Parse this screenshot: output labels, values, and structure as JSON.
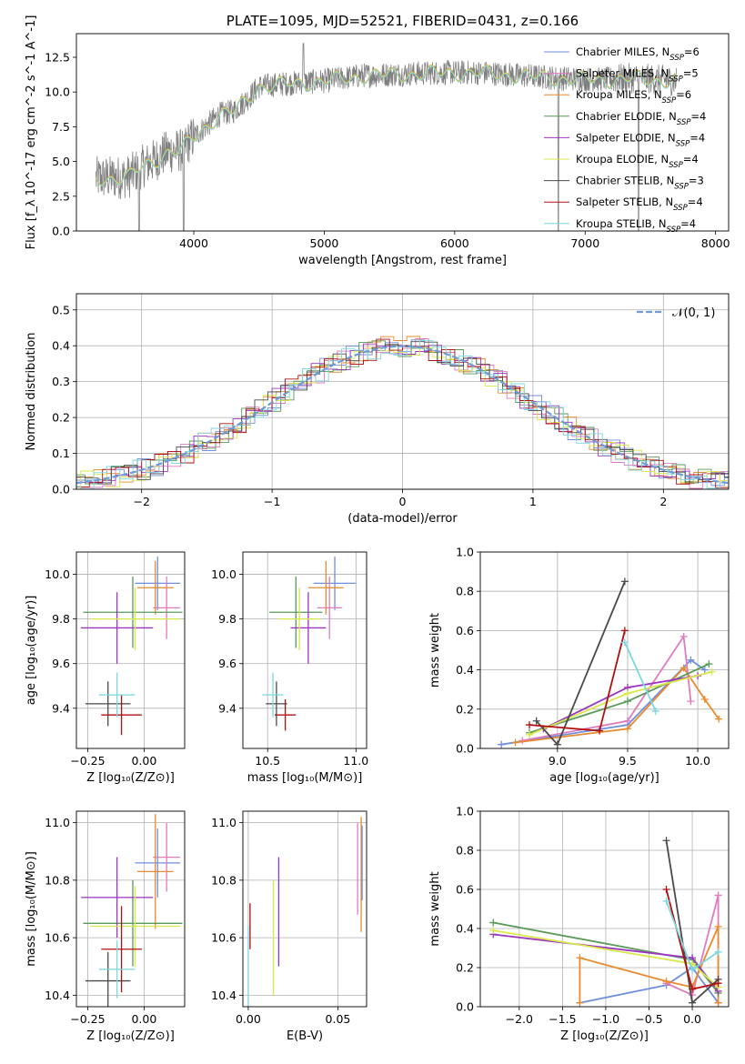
{
  "colors": {
    "chabrier_miles": "#6f8fdc",
    "salpeter_miles": "#e07bbf",
    "kroupa_miles": "#e88a2e",
    "chabrier_elodie": "#5a9a5a",
    "salpeter_elodie": "#9b35c0",
    "kroupa_elodie": "#d8e84a",
    "chabrier_stelib": "#4a4a4a",
    "salpeter_stelib": "#b01010",
    "kroupa_stelib": "#7ad8e0",
    "data": "#808080",
    "gaussian": "#6f9bd6",
    "grid": "#b0b0b0"
  },
  "chart_data": [
    {
      "id": "spectrum",
      "type": "line",
      "title": "PLATE=1095, MJD=52521, FIBERID=0431, z=0.166",
      "xlabel": "wavelength [Angstrom, rest frame]",
      "ylabel": "Flux [f_λ 10^-17 erg cm^-2 s^-1 A^-1]",
      "xlim": [
        3100,
        8100
      ],
      "ylim": [
        0,
        14.2
      ],
      "xticks": [
        "4000",
        "5000",
        "6000",
        "7000",
        "8000"
      ],
      "yticks": [
        "0.0",
        "2.5",
        "5.0",
        "7.5",
        "10.0",
        "12.5"
      ],
      "grid": false,
      "legend_position": "right",
      "legend": [
        "Chabrier MILES, N_SSP=6",
        "Salpeter MILES, N_SSP=5",
        "Kroupa MILES, N_SSP=6",
        "Chabrier ELODIE, N_SSP=4",
        "Salpeter ELODIE, N_SSP=4",
        "Kroupa ELODIE, N_SSP=4",
        "Chabrier STELIB, N_SSP=3",
        "Salpeter STELIB, N_SSP=4",
        "Kroupa STELIB, N_SSP=4"
      ],
      "continuum": {
        "x": [
          3250,
          3500,
          3600,
          3700,
          3800,
          3900,
          4000,
          4100,
          4200,
          4300,
          4400,
          4500,
          4700,
          5000,
          5300,
          5600,
          5900,
          6200,
          6500,
          6800,
          7100,
          7400,
          7700
        ],
        "y": [
          3.8,
          3.9,
          4.6,
          5.1,
          5.7,
          5.8,
          6.8,
          7.6,
          8.4,
          8.6,
          9.4,
          10.4,
          10.6,
          10.8,
          11.2,
          11.3,
          11.4,
          11.4,
          11.2,
          11.0,
          10.9,
          11.0,
          10.8
        ]
      }
    },
    {
      "id": "residuals",
      "type": "bar",
      "xlabel": "(data-model)/error",
      "ylabel": "Normed distribution",
      "xlim": [
        -2.5,
        2.5
      ],
      "ylim": [
        0,
        0.545
      ],
      "xticks": [
        "−2",
        "−1",
        "0",
        "1",
        "2"
      ],
      "yticks": [
        "0.0",
        "0.1",
        "0.2",
        "0.3",
        "0.4",
        "0.5"
      ],
      "grid": true,
      "legend_position": "top-right",
      "gaussian_label": "𝒩(0, 1)"
    },
    {
      "id": "age_vs_Z",
      "type": "scatter",
      "xlabel": "Z [log10(Z/Z⊙)]",
      "ylabel": "age  [log10(age/yr)]",
      "xlim": [
        -0.3,
        0.18
      ],
      "ylim": [
        9.22,
        10.1
      ],
      "xticks": [
        "−0.25",
        "0.00"
      ],
      "yticks": [
        "9.4",
        "9.6",
        "9.8",
        "10.0"
      ],
      "grid": true,
      "points": [
        {
          "x": 0.06,
          "y": 9.96,
          "dx": 0.1,
          "dy": 0.12,
          "c": "chabrier_miles"
        },
        {
          "x": 0.1,
          "y": 9.85,
          "dx": 0.06,
          "dy": 0.14,
          "c": "salpeter_miles"
        },
        {
          "x": 0.05,
          "y": 9.94,
          "dx": 0.08,
          "dy": 0.12,
          "c": "kroupa_miles"
        },
        {
          "x": -0.05,
          "y": 9.83,
          "dx": 0.22,
          "dy": 0.16,
          "c": "chabrier_elodie"
        },
        {
          "x": -0.12,
          "y": 9.76,
          "dx": 0.16,
          "dy": 0.16,
          "c": "salpeter_elodie"
        },
        {
          "x": -0.04,
          "y": 9.8,
          "dx": 0.2,
          "dy": 0.14,
          "c": "kroupa_elodie"
        },
        {
          "x": -0.16,
          "y": 9.42,
          "dx": 0.1,
          "dy": 0.1,
          "c": "chabrier_stelib"
        },
        {
          "x": -0.1,
          "y": 9.37,
          "dx": 0.09,
          "dy": 0.09,
          "c": "salpeter_stelib"
        },
        {
          "x": -0.12,
          "y": 9.46,
          "dx": 0.08,
          "dy": 0.1,
          "c": "kroupa_stelib"
        }
      ]
    },
    {
      "id": "age_vs_mass",
      "type": "scatter",
      "xlabel": "mass [log10(M/M⊙)]",
      "ylabel": "",
      "xlim": [
        10.36,
        11.06
      ],
      "ylim": [
        9.22,
        10.1
      ],
      "xticks": [
        "10.5",
        "11.0"
      ],
      "yticks": [
        "9.4",
        "9.6",
        "9.8",
        "10.0"
      ],
      "grid": true,
      "points": [
        {
          "x": 10.88,
          "y": 9.96,
          "dx": 0.12,
          "dy": 0.12,
          "c": "chabrier_miles"
        },
        {
          "x": 10.85,
          "y": 9.85,
          "dx": 0.07,
          "dy": 0.14,
          "c": "salpeter_miles"
        },
        {
          "x": 10.83,
          "y": 9.94,
          "dx": 0.1,
          "dy": 0.12,
          "c": "kroupa_miles"
        },
        {
          "x": 10.66,
          "y": 9.83,
          "dx": 0.15,
          "dy": 0.16,
          "c": "chabrier_elodie"
        },
        {
          "x": 10.73,
          "y": 9.76,
          "dx": 0.1,
          "dy": 0.16,
          "c": "salpeter_elodie"
        },
        {
          "x": 10.68,
          "y": 9.8,
          "dx": 0.12,
          "dy": 0.14,
          "c": "kroupa_elodie"
        },
        {
          "x": 10.55,
          "y": 9.42,
          "dx": 0.06,
          "dy": 0.1,
          "c": "chabrier_stelib"
        },
        {
          "x": 10.6,
          "y": 9.37,
          "dx": 0.06,
          "dy": 0.07,
          "c": "salpeter_stelib"
        },
        {
          "x": 10.53,
          "y": 9.46,
          "dx": 0.06,
          "dy": 0.1,
          "c": "kroupa_stelib"
        }
      ]
    },
    {
      "id": "weight_vs_age",
      "type": "line",
      "xlabel": "age  [log10(age/yr)]",
      "ylabel": "mass weight",
      "xlim": [
        8.45,
        10.22
      ],
      "ylim": [
        0,
        1.0
      ],
      "xticks": [
        "9.0",
        "9.5",
        "10.0"
      ],
      "yticks": [
        "0.0",
        "0.2",
        "0.4",
        "0.6",
        "0.8",
        "1.0"
      ],
      "grid": true,
      "series": [
        {
          "c": "chabrier_miles",
          "x": [
            8.6,
            9.5,
            9.95,
            10.05
          ],
          "y": [
            0.02,
            0.12,
            0.45,
            0.4
          ]
        },
        {
          "c": "salpeter_miles",
          "x": [
            8.75,
            9.5,
            9.9,
            9.95
          ],
          "y": [
            0.04,
            0.14,
            0.57,
            0.24
          ]
        },
        {
          "c": "kroupa_miles",
          "x": [
            8.7,
            9.5,
            9.9,
            10.05,
            10.15
          ],
          "y": [
            0.03,
            0.1,
            0.41,
            0.25,
            0.15
          ]
        },
        {
          "c": "chabrier_elodie",
          "x": [
            8.8,
            9.5,
            10.08
          ],
          "y": [
            0.08,
            0.24,
            0.43
          ]
        },
        {
          "c": "salpeter_elodie",
          "x": [
            8.9,
            9.5,
            10.0
          ],
          "y": [
            0.1,
            0.31,
            0.37
          ]
        },
        {
          "c": "kroupa_elodie",
          "x": [
            8.8,
            9.5,
            10.1
          ],
          "y": [
            0.07,
            0.28,
            0.39
          ]
        },
        {
          "c": "chabrier_stelib",
          "x": [
            8.85,
            9.0,
            9.48
          ],
          "y": [
            0.14,
            0.02,
            0.85
          ]
        },
        {
          "c": "salpeter_stelib",
          "x": [
            8.8,
            9.3,
            9.48
          ],
          "y": [
            0.12,
            0.09,
            0.6
          ]
        },
        {
          "c": "kroupa_stelib",
          "x": [
            9.48,
            9.7
          ],
          "y": [
            0.54,
            0.19
          ]
        }
      ]
    },
    {
      "id": "mass_vs_Z",
      "type": "scatter",
      "xlabel": "Z [log10(Z/Z⊙)]",
      "ylabel": "mass [log10(M/M⊙)]",
      "xlim": [
        -0.3,
        0.18
      ],
      "ylim": [
        10.36,
        11.04
      ],
      "xticks": [
        "−0.25",
        "0.00"
      ],
      "yticks": [
        "10.4",
        "10.6",
        "10.8",
        "11.0"
      ],
      "grid": true,
      "points": [
        {
          "x": 0.06,
          "y": 10.86,
          "dx": 0.1,
          "dy": 0.12,
          "c": "chabrier_miles"
        },
        {
          "x": 0.1,
          "y": 10.88,
          "dx": 0.06,
          "dy": 0.12,
          "c": "salpeter_miles"
        },
        {
          "x": 0.05,
          "y": 10.83,
          "dx": 0.08,
          "dy": 0.2,
          "c": "kroupa_miles"
        },
        {
          "x": -0.05,
          "y": 10.65,
          "dx": 0.22,
          "dy": 0.15,
          "c": "chabrier_elodie"
        },
        {
          "x": -0.12,
          "y": 10.74,
          "dx": 0.16,
          "dy": 0.14,
          "c": "salpeter_elodie"
        },
        {
          "x": -0.04,
          "y": 10.64,
          "dx": 0.2,
          "dy": 0.14,
          "c": "kroupa_elodie"
        },
        {
          "x": -0.16,
          "y": 10.45,
          "dx": 0.1,
          "dy": 0.1,
          "c": "chabrier_stelib"
        },
        {
          "x": -0.1,
          "y": 10.56,
          "dx": 0.09,
          "dy": 0.15,
          "c": "salpeter_stelib"
        },
        {
          "x": -0.12,
          "y": 10.49,
          "dx": 0.08,
          "dy": 0.1,
          "c": "kroupa_stelib"
        }
      ]
    },
    {
      "id": "mass_vs_ebv",
      "type": "scatter",
      "xlabel": "E(B-V)",
      "ylabel": "",
      "xlim": [
        -0.003,
        0.066
      ],
      "ylim": [
        10.36,
        11.04
      ],
      "xticks": [
        "0.00",
        "0.05"
      ],
      "yticks": [
        "10.4",
        "10.6",
        "10.8",
        "11.0"
      ],
      "grid": true,
      "points": [
        {
          "x": 0.0,
          "y": 10.5,
          "dx": 0,
          "dy": 0.14,
          "c": "kroupa_stelib"
        },
        {
          "x": 0.001,
          "y": 10.64,
          "dx": 0,
          "dy": 0.08,
          "c": "salpeter_stelib"
        },
        {
          "x": 0.014,
          "y": 10.6,
          "dx": 0,
          "dy": 0.2,
          "c": "kroupa_elodie"
        },
        {
          "x": 0.017,
          "y": 10.69,
          "dx": 0,
          "dy": 0.19,
          "c": "salpeter_elodie"
        },
        {
          "x": 0.061,
          "y": 10.84,
          "dx": 0,
          "dy": 0.16,
          "c": "salpeter_miles"
        },
        {
          "x": 0.063,
          "y": 10.82,
          "dx": 0,
          "dy": 0.2,
          "c": "kroupa_miles"
        },
        {
          "x": 0.0635,
          "y": 10.86,
          "dx": 0,
          "dy": 0.13,
          "c": "chabrier_miles"
        }
      ]
    },
    {
      "id": "weight_vs_Z",
      "type": "line",
      "xlabel": "Z [log10(Z/Z⊙)]",
      "ylabel": "mass weight",
      "xlim": [
        -2.45,
        0.42
      ],
      "ylim": [
        0,
        1.0
      ],
      "xticks": [
        "−2.0",
        "−1.5",
        "−1.0",
        "−0.5",
        "0.0"
      ],
      "yticks": [
        "0.0",
        "0.2",
        "0.4",
        "0.6",
        "0.8",
        "1.0"
      ],
      "grid": true,
      "series": [
        {
          "c": "chabrier_miles",
          "x": [
            -1.3,
            -0.3,
            0.0,
            0.3
          ],
          "y": [
            0.02,
            0.11,
            0.2,
            0.02
          ]
        },
        {
          "c": "salpeter_miles",
          "x": [
            -0.3,
            0.0,
            0.3,
            0.3
          ],
          "y": [
            0.12,
            0.06,
            0.57,
            0.02
          ]
        },
        {
          "c": "kroupa_miles",
          "x": [
            -1.3,
            -1.3,
            -0.3,
            0.0,
            0.3,
            0.3
          ],
          "y": [
            0.02,
            0.25,
            0.13,
            0.1,
            0.41,
            0.02
          ]
        },
        {
          "c": "chabrier_elodie",
          "x": [
            -2.3,
            0.0,
            0.3
          ],
          "y": [
            0.43,
            0.24,
            0.07
          ]
        },
        {
          "c": "salpeter_elodie",
          "x": [
            -2.3,
            0.0,
            0.3
          ],
          "y": [
            0.37,
            0.25,
            0.08
          ]
        },
        {
          "c": "kroupa_elodie",
          "x": [
            -2.3,
            0.0,
            0.3
          ],
          "y": [
            0.39,
            0.22,
            0.1
          ]
        },
        {
          "c": "chabrier_stelib",
          "x": [
            -0.3,
            0.0,
            0.3
          ],
          "y": [
            0.85,
            0.02,
            0.14
          ]
        },
        {
          "c": "salpeter_stelib",
          "x": [
            -0.3,
            0.0,
            0.3
          ],
          "y": [
            0.6,
            0.09,
            0.12
          ]
        },
        {
          "c": "kroupa_stelib",
          "x": [
            -0.3,
            0.0,
            0.3
          ],
          "y": [
            0.54,
            0.19,
            0.28
          ]
        }
      ]
    }
  ]
}
